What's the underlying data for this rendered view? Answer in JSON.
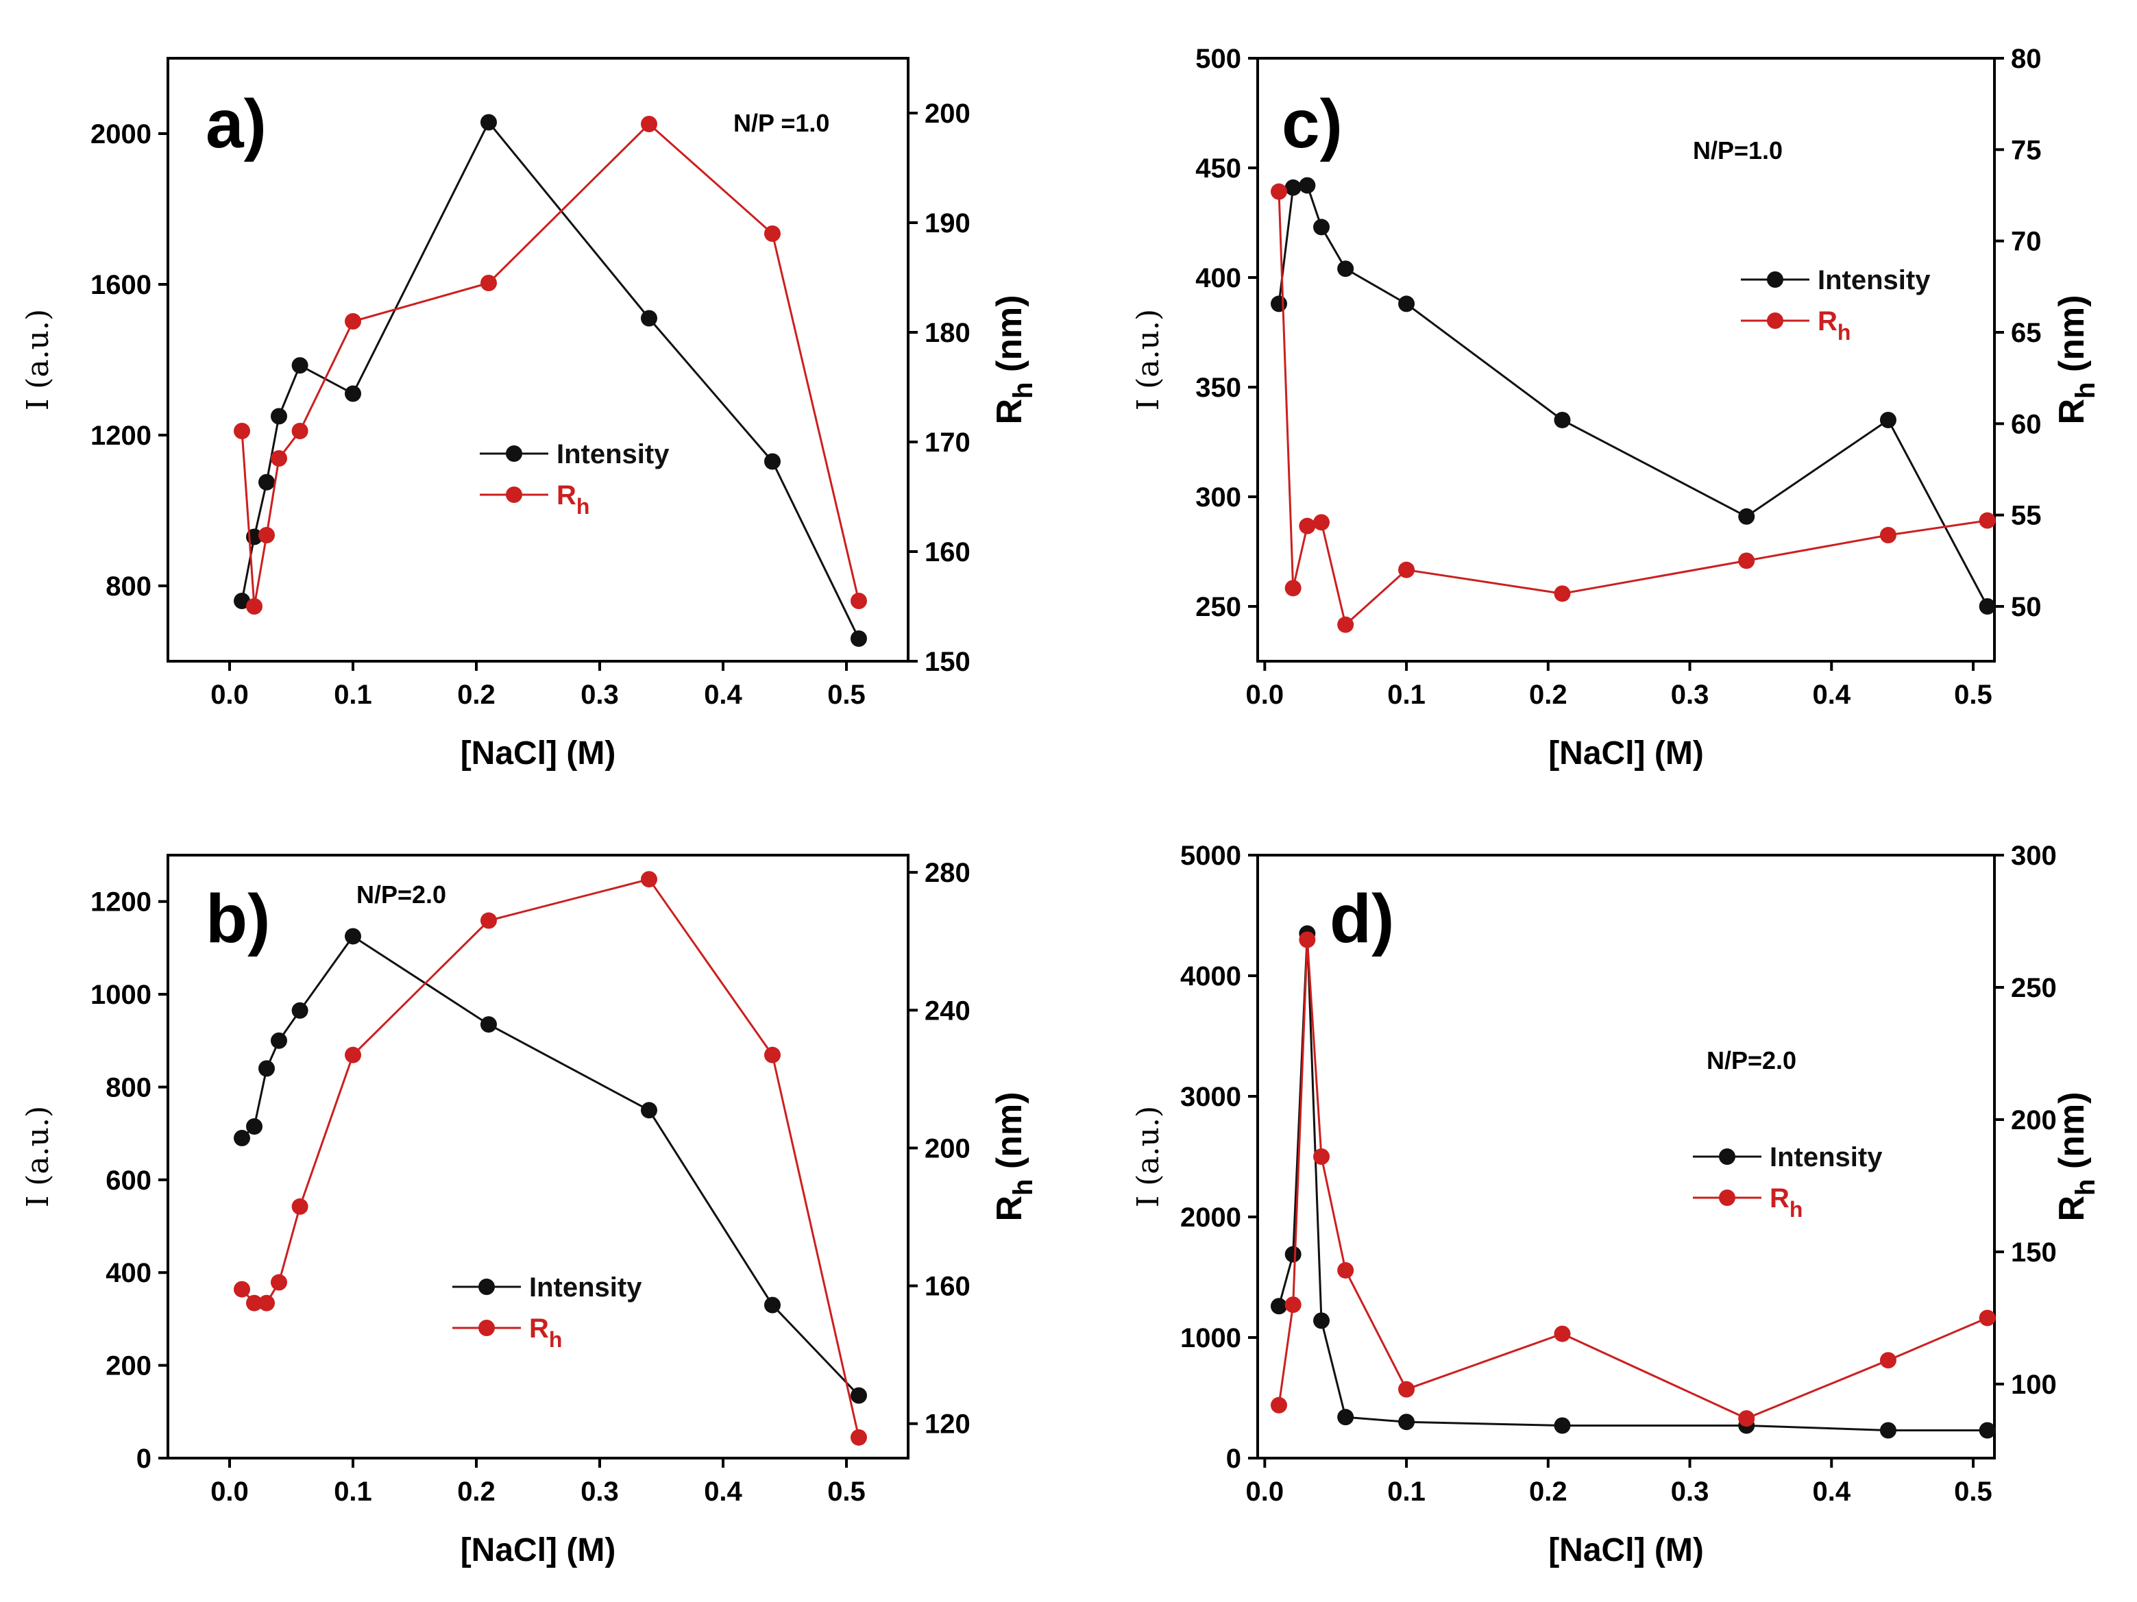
{
  "colors": {
    "intensity": "#111111",
    "rh": "#cc1f1f"
  },
  "chart_data": [
    {
      "type": "line",
      "panel_label": "a)",
      "annotation": "N/P =1.0",
      "xlabel": "[NaCl] (M)",
      "ylabel": "I (a.u.)",
      "y2label": "R",
      "y2label_sub": "h",
      "y2label_unit": " (nm)",
      "xlim": [
        -0.05,
        0.55
      ],
      "ylim": [
        600,
        2200
      ],
      "y2lim": [
        150,
        205
      ],
      "xticks": [
        0.0,
        0.1,
        0.2,
        0.3,
        0.4,
        0.5
      ],
      "xtick_labels": [
        "0.0",
        "0.1",
        "0.2",
        "0.3",
        "0.4",
        "0.5"
      ],
      "yticks": [
        800,
        1200,
        1600,
        2000
      ],
      "ytick_labels": [
        "800",
        "1200",
        "1600",
        "2000"
      ],
      "y2ticks": [
        150,
        160,
        170,
        180,
        190,
        200
      ],
      "y2tick_labels": [
        "150",
        "160",
        "170",
        "180",
        "190",
        "200"
      ],
      "legend": {
        "intensity": "Intensity",
        "rh_main": "R",
        "rh_sub": "h"
      },
      "series": [
        {
          "name": "Intensity",
          "axis": "left",
          "color": "#111111",
          "x": [
            0.01,
            0.02,
            0.03,
            0.04,
            0.057,
            0.1,
            0.21,
            0.34,
            0.44,
            0.51
          ],
          "values": [
            760,
            930,
            1075,
            1250,
            1385,
            1310,
            2030,
            1510,
            1130,
            660
          ]
        },
        {
          "name": "Rh",
          "axis": "right",
          "color": "#cc1f1f",
          "x": [
            0.01,
            0.02,
            0.03,
            0.04,
            0.057,
            0.1,
            0.21,
            0.34,
            0.44,
            0.51
          ],
          "values": [
            171,
            155,
            161.5,
            168.5,
            171,
            181,
            184.5,
            199,
            189,
            155.5
          ]
        }
      ]
    },
    {
      "type": "line",
      "panel_label": "b)",
      "annotation": "N/P=2.0",
      "xlabel": "[NaCl] (M)",
      "ylabel": "I (a.u.)",
      "y2label": "R",
      "y2label_sub": "h",
      "y2label_unit": " (nm)",
      "xlim": [
        -0.05,
        0.55
      ],
      "ylim": [
        0,
        1300
      ],
      "y2lim": [
        110,
        285
      ],
      "xticks": [
        0.0,
        0.1,
        0.2,
        0.3,
        0.4,
        0.5
      ],
      "xtick_labels": [
        "0.0",
        "0.1",
        "0.2",
        "0.3",
        "0.4",
        "0.5"
      ],
      "yticks": [
        0,
        200,
        400,
        600,
        800,
        1000,
        1200
      ],
      "ytick_labels": [
        "0",
        "200",
        "400",
        "600",
        "800",
        "1000",
        "1200"
      ],
      "y2ticks": [
        120,
        160,
        200,
        240,
        280
      ],
      "y2tick_labels": [
        "120",
        "160",
        "200",
        "240",
        "280"
      ],
      "legend": {
        "intensity": "Intensity",
        "rh_main": "R",
        "rh_sub": "h"
      },
      "series": [
        {
          "name": "Intensity",
          "axis": "left",
          "color": "#111111",
          "x": [
            0.01,
            0.02,
            0.03,
            0.04,
            0.057,
            0.1,
            0.21,
            0.34,
            0.44,
            0.51
          ],
          "values": [
            690,
            715,
            840,
            900,
            965,
            1125,
            935,
            750,
            330,
            135
          ]
        },
        {
          "name": "Rh",
          "axis": "right",
          "color": "#cc1f1f",
          "x": [
            0.01,
            0.02,
            0.03,
            0.04,
            0.057,
            0.1,
            0.21,
            0.34,
            0.44,
            0.51
          ],
          "values": [
            159,
            155,
            155,
            161,
            183,
            227,
            266,
            278,
            227,
            116
          ]
        }
      ]
    },
    {
      "type": "line",
      "panel_label": "c)",
      "annotation": "N/P=1.0",
      "xlabel": "[NaCl] (M)",
      "ylabel": "I (a.u.)",
      "y2label": "R",
      "y2label_sub": "h",
      "y2label_unit": " (nm)",
      "xlim": [
        -0.005,
        0.515
      ],
      "ylim": [
        225,
        500
      ],
      "y2lim": [
        47,
        80
      ],
      "xticks": [
        0.0,
        0.1,
        0.2,
        0.3,
        0.4,
        0.5
      ],
      "xtick_labels": [
        "0.0",
        "0.1",
        "0.2",
        "0.3",
        "0.4",
        "0.5"
      ],
      "yticks": [
        250,
        300,
        350,
        400,
        450,
        500
      ],
      "ytick_labels": [
        "250",
        "300",
        "350",
        "400",
        "450",
        "500"
      ],
      "y2ticks": [
        50,
        55,
        60,
        65,
        70,
        75,
        80
      ],
      "y2tick_labels": [
        "50",
        "55",
        "60",
        "65",
        "70",
        "75",
        "80"
      ],
      "legend": {
        "intensity": "Intensity",
        "rh_main": "R",
        "rh_sub": "h"
      },
      "series": [
        {
          "name": "Intensity",
          "axis": "left",
          "color": "#111111",
          "x": [
            0.01,
            0.02,
            0.03,
            0.04,
            0.057,
            0.1,
            0.21,
            0.34,
            0.44,
            0.51
          ],
          "values": [
            388,
            441,
            442,
            423,
            404,
            388,
            335,
            291,
            335,
            250
          ]
        },
        {
          "name": "Rh",
          "axis": "right",
          "color": "#cc1f1f",
          "x": [
            0.01,
            0.02,
            0.03,
            0.04,
            0.057,
            0.1,
            0.21,
            0.34,
            0.44,
            0.51
          ],
          "values": [
            72.7,
            51.0,
            54.4,
            54.6,
            49.0,
            52.0,
            50.7,
            52.5,
            53.9,
            54.7
          ]
        }
      ]
    },
    {
      "type": "line",
      "panel_label": "d)",
      "annotation": "N/P=2.0",
      "xlabel": "[NaCl] (M)",
      "ylabel": "I (a.u.)",
      "y2label": "R",
      "y2label_sub": "h",
      "y2label_unit": " (nm)",
      "xlim": [
        -0.005,
        0.515
      ],
      "ylim": [
        0,
        5000
      ],
      "y2lim": [
        72,
        300
      ],
      "xticks": [
        0.0,
        0.1,
        0.2,
        0.3,
        0.4,
        0.5
      ],
      "xtick_labels": [
        "0.0",
        "0.1",
        "0.2",
        "0.3",
        "0.4",
        "0.5"
      ],
      "yticks": [
        0,
        1000,
        2000,
        3000,
        4000,
        5000
      ],
      "ytick_labels": [
        "0",
        "1000",
        "2000",
        "3000",
        "4000",
        "5000"
      ],
      "y2ticks": [
        100,
        150,
        200,
        250,
        300
      ],
      "y2tick_labels": [
        "100",
        "150",
        "200",
        "250",
        "300"
      ],
      "legend": {
        "intensity": "Intensity",
        "rh_main": "R",
        "rh_sub": "h"
      },
      "series": [
        {
          "name": "Intensity",
          "axis": "left",
          "color": "#111111",
          "x": [
            0.01,
            0.02,
            0.03,
            0.04,
            0.057,
            0.1,
            0.21,
            0.34,
            0.44,
            0.51
          ],
          "values": [
            1260,
            1690,
            4350,
            1140,
            340,
            300,
            270,
            270,
            230,
            230
          ]
        },
        {
          "name": "Rh",
          "axis": "right",
          "color": "#cc1f1f",
          "x": [
            0.01,
            0.02,
            0.03,
            0.04,
            0.057,
            0.1,
            0.21,
            0.34,
            0.44,
            0.51
          ],
          "values": [
            92,
            130,
            268,
            186,
            143,
            98,
            119,
            87,
            109,
            125
          ]
        }
      ]
    }
  ]
}
